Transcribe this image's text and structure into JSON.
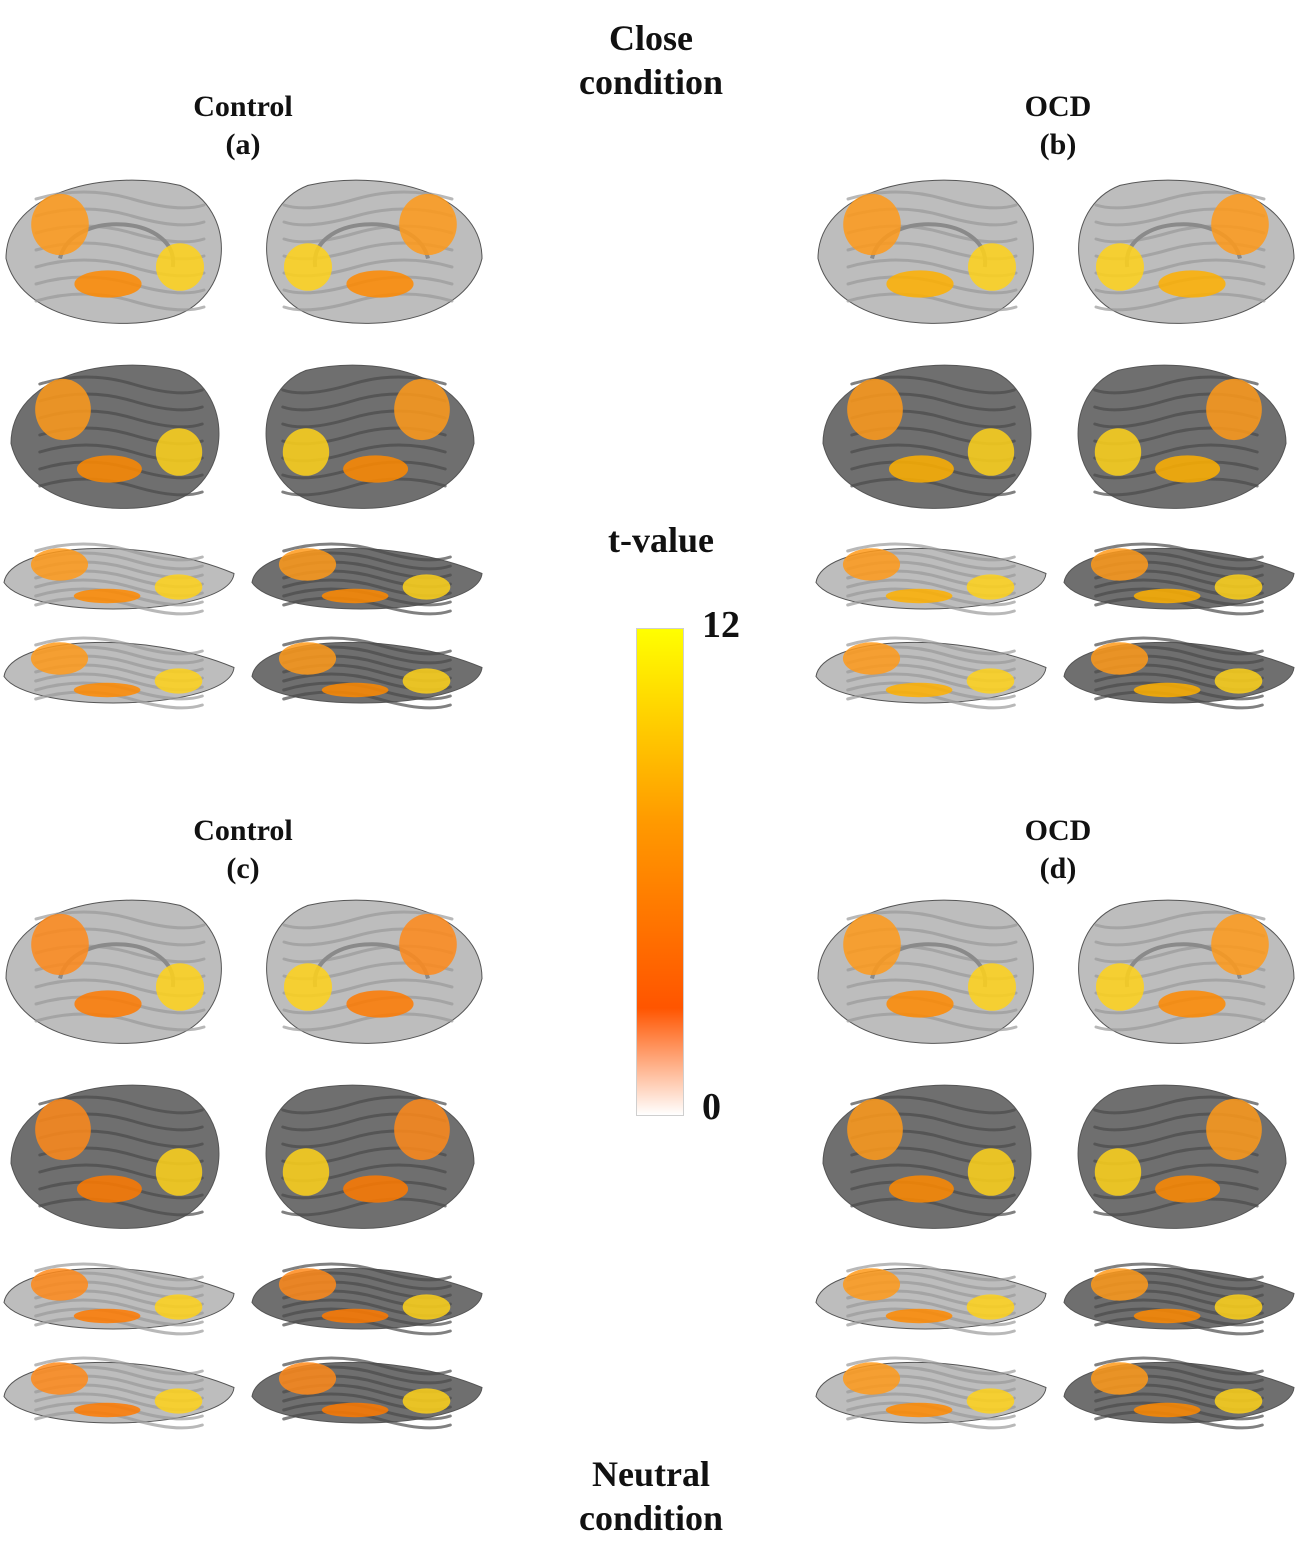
{
  "header": {
    "line1": "Close",
    "line2": "condition"
  },
  "footer": {
    "line1": "Neutral",
    "line2": "condition"
  },
  "colorbar": {
    "label": "t-value",
    "max": "12",
    "min": "0",
    "colors": [
      "#ffff00",
      "#ff9900",
      "#ff5500",
      "#ffffff"
    ]
  },
  "panels": {
    "a": {
      "group": "Control",
      "tag": "(a)"
    },
    "b": {
      "group": "OCD",
      "tag": "(b)"
    },
    "c": {
      "group": "Control",
      "tag": "(c)"
    },
    "d": {
      "group": "OCD",
      "tag": "(d)"
    }
  },
  "surface_colors": {
    "cortex_light": "#bdbdbd",
    "cortex_dark": "#6f6f6f"
  }
}
